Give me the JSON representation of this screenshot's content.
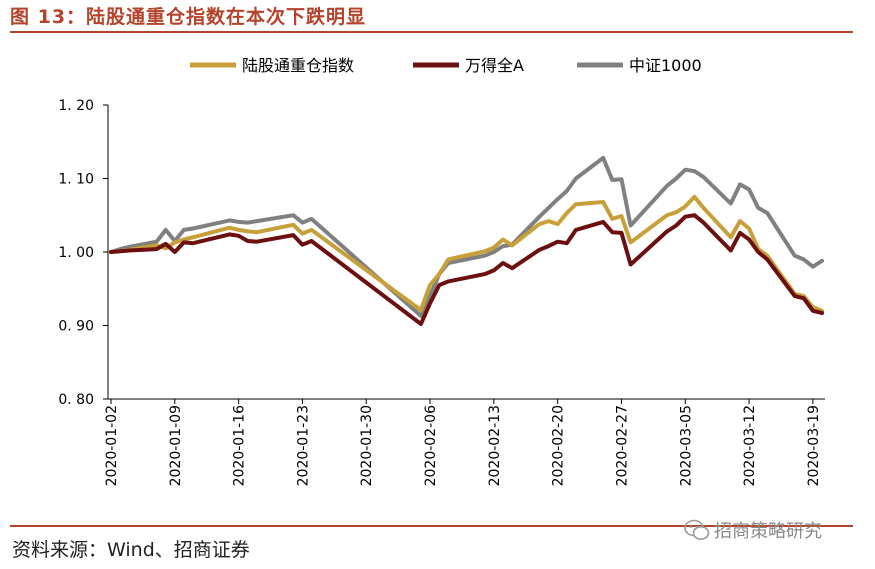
{
  "header": {
    "title": "图 13：陆股通重仓指数在本次下跌明显"
  },
  "footer": {
    "source": "资料来源：Wind、招商证券",
    "watermark": "招商策略研究",
    "watermark_icon": "wechat-icon"
  },
  "colors": {
    "accent": "#b5422a",
    "s1": "#c8a03a",
    "s2": "#6b0f0f",
    "s3": "#808080"
  },
  "chart_data": {
    "type": "line",
    "title": "",
    "ylim": [
      0.8,
      1.2
    ],
    "yticks": [
      "1. 20",
      "1. 10",
      "1. 00",
      "0. 90",
      "0. 80"
    ],
    "ytick_values": [
      1.2,
      1.1,
      1.0,
      0.9,
      0.8
    ],
    "xtick_labels": [
      "2020-01-02",
      "2020-01-09",
      "2020-01-16",
      "2020-01-23",
      "2020-01-30",
      "2020-02-06",
      "2020-02-13",
      "2020-02-20",
      "2020-02-27",
      "2020-03-05",
      "2020-03-12",
      "2020-03-19"
    ],
    "xtick_days": [
      0,
      7,
      14,
      21,
      28,
      35,
      42,
      49,
      56,
      63,
      70,
      77
    ],
    "legend_position": "top",
    "x": [
      0,
      1,
      2,
      5,
      6,
      7,
      8,
      9,
      13,
      14,
      15,
      16,
      20,
      21,
      22,
      34,
      35,
      36,
      37,
      41,
      42,
      43,
      44,
      47,
      48,
      49,
      50,
      51,
      54,
      55,
      56,
      57,
      61,
      62,
      63,
      64,
      65,
      68,
      69,
      70,
      71,
      72,
      75,
      76,
      77,
      78
    ],
    "series": [
      {
        "name": "陆股通重仓指数",
        "color": "#c8a03a",
        "values": [
          1.0,
          1.001,
          1.003,
          1.009,
          1.005,
          1.013,
          1.017,
          1.02,
          1.033,
          1.03,
          1.028,
          1.027,
          1.037,
          1.025,
          1.03,
          0.921,
          0.955,
          0.97,
          0.99,
          1.001,
          1.006,
          1.017,
          1.009,
          1.038,
          1.042,
          1.038,
          1.053,
          1.065,
          1.068,
          1.045,
          1.049,
          1.013,
          1.05,
          1.054,
          1.062,
          1.075,
          1.06,
          1.02,
          1.042,
          1.032,
          1.004,
          0.995,
          0.943,
          0.94,
          0.925,
          0.92
        ]
      },
      {
        "name": "万得全A",
        "color": "#6b0f0f",
        "values": [
          1.0,
          1.001,
          1.002,
          1.004,
          1.011,
          1.0,
          1.013,
          1.012,
          1.024,
          1.022,
          1.015,
          1.014,
          1.023,
          1.01,
          1.015,
          0.902,
          0.93,
          0.955,
          0.96,
          0.97,
          0.975,
          0.985,
          0.978,
          1.003,
          1.008,
          1.014,
          1.012,
          1.03,
          1.041,
          1.027,
          1.026,
          0.983,
          1.028,
          1.036,
          1.048,
          1.05,
          1.04,
          1.002,
          1.026,
          1.017,
          1.0,
          0.99,
          0.94,
          0.937,
          0.92,
          0.917
        ]
      },
      {
        "name": "中证1000",
        "color": "#808080",
        "values": [
          1.0,
          1.004,
          1.007,
          1.014,
          1.03,
          1.015,
          1.03,
          1.032,
          1.043,
          1.041,
          1.04,
          1.042,
          1.05,
          1.04,
          1.045,
          0.913,
          0.94,
          0.97,
          0.985,
          0.995,
          1.0,
          1.008,
          1.01,
          1.048,
          1.06,
          1.072,
          1.083,
          1.1,
          1.128,
          1.098,
          1.099,
          1.036,
          1.09,
          1.1,
          1.112,
          1.11,
          1.102,
          1.066,
          1.092,
          1.085,
          1.06,
          1.053,
          0.995,
          0.99,
          0.98,
          0.988
        ]
      }
    ]
  }
}
